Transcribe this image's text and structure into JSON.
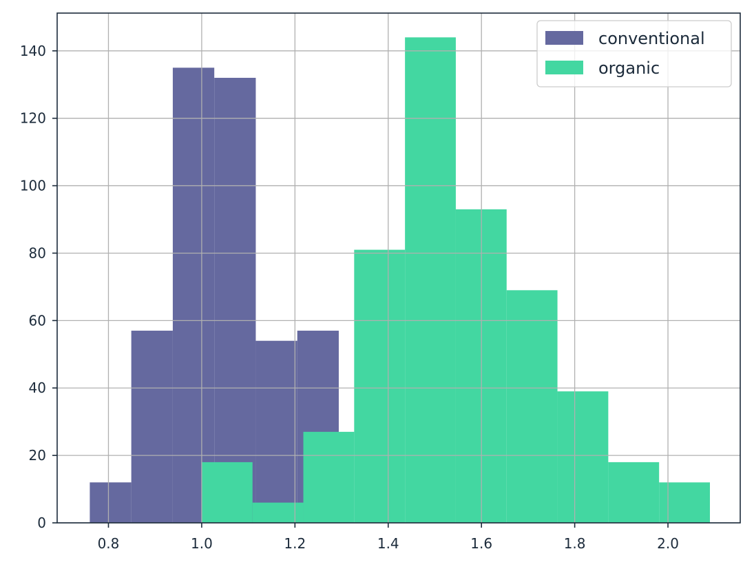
{
  "chart_data": {
    "type": "bar",
    "subtype": "histogram",
    "title": "",
    "xlabel": "",
    "ylabel": "",
    "xlim": [
      0.69,
      2.155
    ],
    "ylim": [
      0,
      151.2
    ],
    "xticks": [
      0.8,
      1.0,
      1.2,
      1.4,
      1.6,
      1.8,
      2.0
    ],
    "xtick_labels": [
      "0.8",
      "1.0",
      "1.2",
      "1.4",
      "1.6",
      "1.8",
      "2.0"
    ],
    "yticks": [
      0,
      20,
      40,
      60,
      80,
      100,
      120,
      140
    ],
    "ytick_labels": [
      "0",
      "20",
      "40",
      "60",
      "80",
      "100",
      "120",
      "140"
    ],
    "grid": true,
    "legend_position": "top-right",
    "series": [
      {
        "name": "conventional",
        "color": "#65699f",
        "bin_edges": [
          0.76,
          0.849,
          0.938,
          1.027,
          1.116,
          1.205,
          1.294
        ],
        "counts": [
          12,
          57,
          135,
          132,
          54,
          57
        ]
      },
      {
        "name": "organic",
        "color": "#43d7a1",
        "bin_edges": [
          1.0,
          1.109,
          1.218,
          1.327,
          1.436,
          1.545,
          1.654,
          1.763,
          1.872,
          1.981,
          2.09
        ],
        "counts": [
          18,
          6,
          27,
          81,
          144,
          93,
          69,
          39,
          18,
          12
        ]
      }
    ]
  }
}
